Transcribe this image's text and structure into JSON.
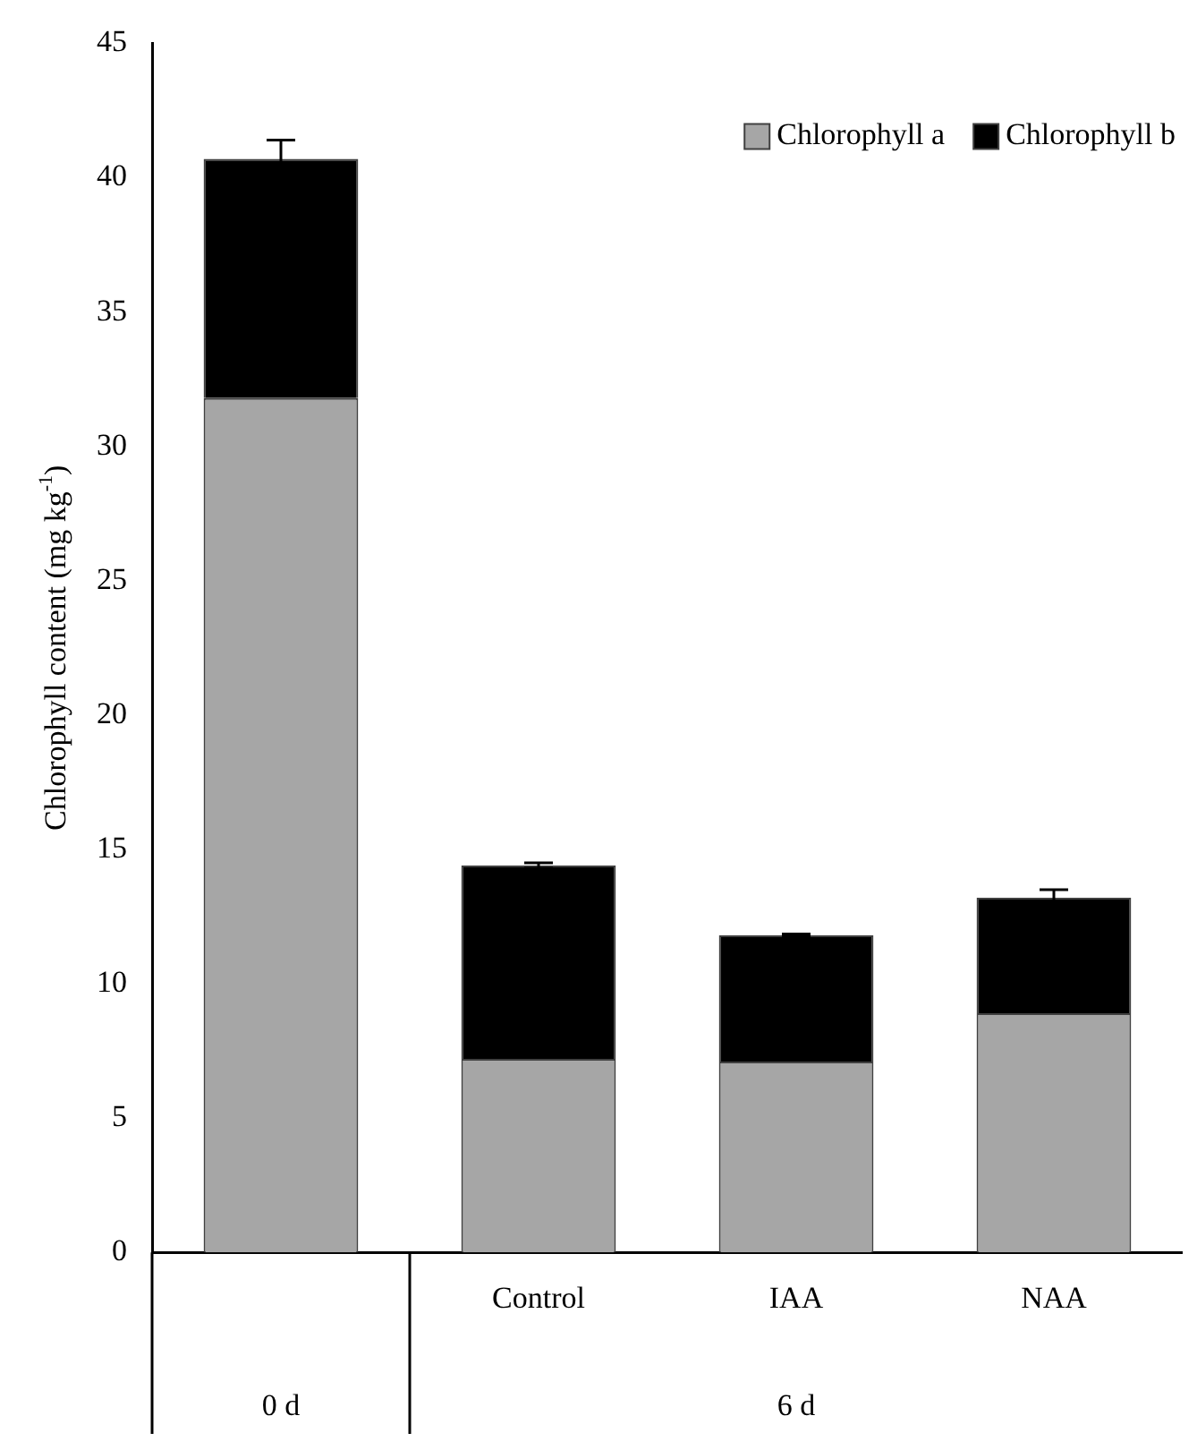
{
  "chart_data": {
    "type": "bar",
    "stacked": true,
    "ylabel": "Chlorophyll content (mg kg$^{-1}$)",
    "categories": [
      null,
      "Control",
      "IAA",
      "NAA"
    ],
    "series": [
      {
        "name": "Chlorophyll a",
        "color": "#a6a6a6",
        "values": [
          31.8,
          7.2,
          7.1,
          8.9
        ]
      },
      {
        "name": "Chlorophyll b",
        "color": "#000000",
        "values": [
          8.9,
          7.2,
          4.7,
          4.3
        ],
        "errors": [
          0.7,
          0.1,
          0.05,
          0.3
        ]
      }
    ],
    "ylim": [
      0,
      45
    ],
    "yticks": [
      0,
      5,
      10,
      15,
      20,
      25,
      30,
      35,
      40,
      45
    ],
    "grid": false,
    "legend": "top right",
    "annotations": [
      "0 d",
      "6 d"
    ]
  }
}
